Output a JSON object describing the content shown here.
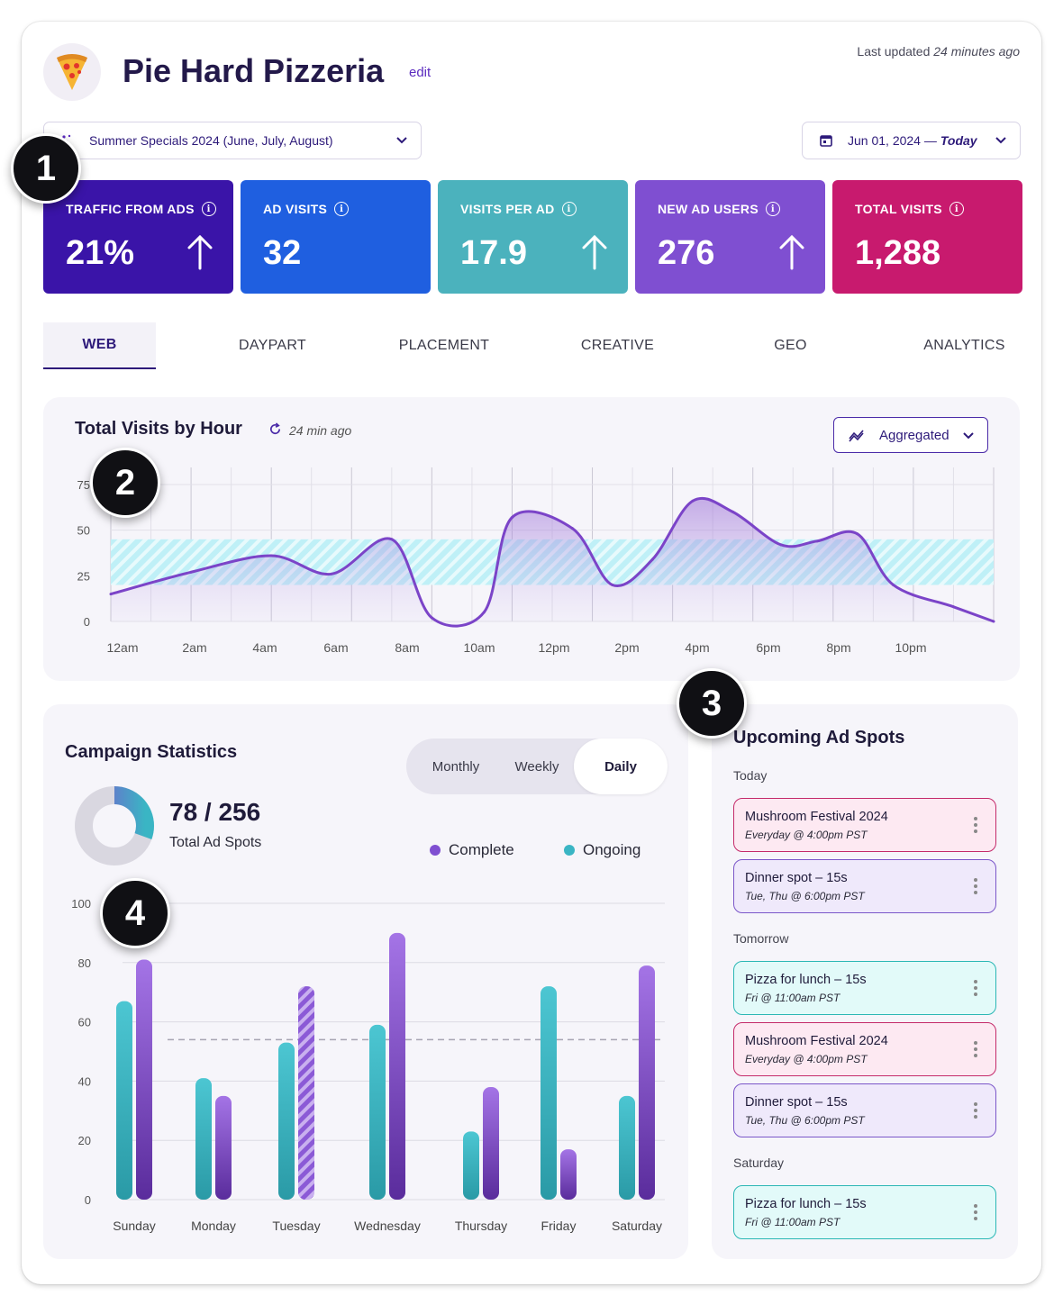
{
  "header": {
    "title": "Pie Hard Pizzeria",
    "edit_label": "edit",
    "last_updated_prefix": "Last updated",
    "last_updated_value": "24 minutes ago"
  },
  "filters": {
    "campaign": "Summer Specials 2024 (June, July, August)",
    "date_from": "Jun 01, 2024 —",
    "date_to": "Today"
  },
  "kpis": [
    {
      "label": "TRAFFIC FROM ADS",
      "value": "21%",
      "trend": "up",
      "color": "#3a14a8"
    },
    {
      "label": "AD VISITS",
      "value": "32",
      "trend": "none",
      "color": "#1f5fe0"
    },
    {
      "label": "VISITS PER AD",
      "value": "17.9",
      "trend": "up",
      "color": "#4bb2bd"
    },
    {
      "label": "NEW AD USERS",
      "value": "276",
      "trend": "up",
      "color": "#7f4fd1"
    },
    {
      "label": "TOTAL VISITS",
      "value": "1,288",
      "trend": "none",
      "color": "#c81a6e"
    }
  ],
  "badges": [
    "1",
    "2",
    "3",
    "4"
  ],
  "tabs": [
    "WEB",
    "DAYPART",
    "PLACEMENT",
    "CREATIVE",
    "GEO",
    "ANALYTICS"
  ],
  "active_tab": "WEB",
  "visits_panel": {
    "title": "Total Visits by Hour",
    "refresh_label": "24 min ago",
    "aggregate_label": "Aggregated"
  },
  "campaign_panel": {
    "title": "Campaign Statistics",
    "segments": [
      "Monthly",
      "Weekly",
      "Daily"
    ],
    "active_segment": "Daily",
    "spots_count": "78 / 256",
    "spots_label": "Total Ad Spots",
    "donut_fraction": 0.305,
    "legend": [
      {
        "label": "Complete",
        "color": "#7f4fd1"
      },
      {
        "label": "Ongoing",
        "color": "#3ab5c4"
      }
    ]
  },
  "upcoming": {
    "title": "Upcoming Ad Spots",
    "groups": [
      {
        "day": "Today",
        "items": [
          {
            "name": "Mushroom Festival 2024",
            "time": "Everyday @ 4:00pm PST",
            "style": "pink"
          },
          {
            "name": "Dinner spot – 15s",
            "time": "Tue, Thu @ 6:00pm PST",
            "style": "lav"
          }
        ]
      },
      {
        "day": "Tomorrow",
        "items": [
          {
            "name": "Pizza for lunch – 15s",
            "time": "Fri @ 11:00am PST",
            "style": "cyan"
          },
          {
            "name": "Mushroom Festival 2024",
            "time": "Everyday @ 4:00pm PST",
            "style": "pink"
          },
          {
            "name": "Dinner spot – 15s",
            "time": "Tue, Thu @ 6:00pm PST",
            "style": "lav"
          }
        ]
      },
      {
        "day": "Saturday",
        "items": [
          {
            "name": "Pizza for lunch – 15s",
            "time": "Fri @ 11:00am PST",
            "style": "cyan"
          }
        ]
      }
    ]
  },
  "chart_data": [
    {
      "type": "area",
      "title": "Total Visits by Hour",
      "x_tick_labels": [
        "12am",
        "2am",
        "4am",
        "6am",
        "8am",
        "10am",
        "12pm",
        "2pm",
        "4pm",
        "6pm",
        "8pm",
        "10pm"
      ],
      "x": [
        0,
        2,
        4,
        5.5,
        7,
        8,
        9.3,
        10,
        11.5,
        12.5,
        13.5,
        14.5,
        15.5,
        16.7,
        17.6,
        18.6,
        19.5,
        21,
        22
      ],
      "y": [
        15,
        27,
        36,
        26,
        45,
        2,
        5,
        57,
        51,
        20,
        34,
        66,
        60,
        42,
        44,
        48,
        20,
        8,
        0
      ],
      "band": [
        20,
        45
      ],
      "ylim": [
        0,
        75
      ],
      "y_ticks": [
        0,
        25,
        50,
        75
      ],
      "grid": true
    },
    {
      "type": "bar",
      "categories": [
        "Sunday",
        "Monday",
        "Tuesday",
        "Wednesday",
        "Thursday",
        "Friday",
        "Saturday"
      ],
      "series": [
        {
          "name": "Ongoing",
          "values": [
            67,
            41,
            53,
            59,
            23,
            72,
            35
          ]
        },
        {
          "name": "Complete",
          "values": [
            81,
            35,
            72,
            90,
            38,
            17,
            79
          ]
        }
      ],
      "reference_line": 54,
      "highlight_striped": "Tuesday",
      "ylim": [
        0,
        100
      ],
      "y_ticks": [
        0,
        20,
        40,
        60,
        80,
        100
      ],
      "grid": true
    }
  ]
}
